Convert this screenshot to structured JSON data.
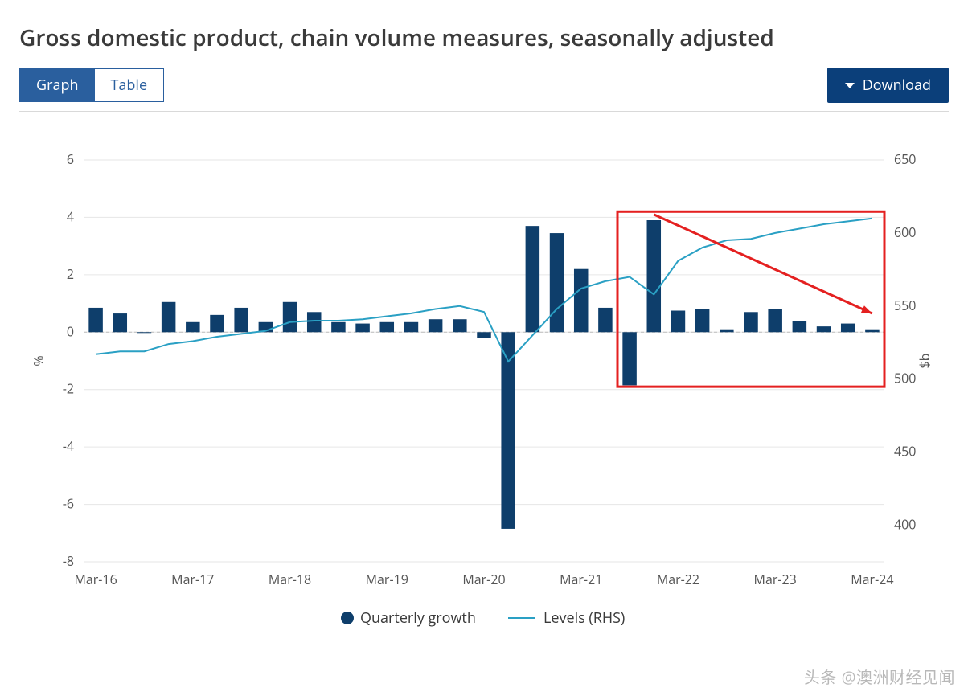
{
  "title": "Gross domestic product, chain volume measures, seasonally adjusted",
  "tabs": {
    "graph": "Graph",
    "table": "Table",
    "active": "graph"
  },
  "download": {
    "label": "Download"
  },
  "watermark": "头条 @澳洲财经见闻",
  "chart": {
    "type": "bar+line",
    "background_color": "#ffffff",
    "grid_color": "#e6e6e6",
    "zero_line_color": "#bdbdbd",
    "bar_color": "#0e3e6b",
    "line_color": "#2aa0c4",
    "text_color": "#555555",
    "highlight_color": "#e42020",
    "arrow_color": "#e42020",
    "left_axis": {
      "label": "%",
      "min": -8,
      "max": 6,
      "step": 2,
      "ticks": [
        -8,
        -6,
        -4,
        -2,
        0,
        2,
        4,
        6
      ]
    },
    "right_axis": {
      "label": "$b",
      "min": 375,
      "max": 650,
      "step": 50,
      "ticks": [
        400,
        450,
        500,
        550,
        600,
        650
      ]
    },
    "x_labels": [
      "Mar-16",
      "Mar-17",
      "Mar-18",
      "Mar-19",
      "Mar-20",
      "Mar-21",
      "Mar-22",
      "Mar-23",
      "Mar-24"
    ],
    "periods": [
      "Mar-16",
      "Jun-16",
      "Sep-16",
      "Dec-16",
      "Mar-17",
      "Jun-17",
      "Sep-17",
      "Dec-17",
      "Mar-18",
      "Jun-18",
      "Sep-18",
      "Dec-18",
      "Mar-19",
      "Jun-19",
      "Sep-19",
      "Dec-19",
      "Mar-20",
      "Jun-20",
      "Sep-20",
      "Dec-20",
      "Mar-21",
      "Jun-21",
      "Sep-21",
      "Dec-21",
      "Mar-22",
      "Jun-22",
      "Sep-22",
      "Dec-22",
      "Mar-23",
      "Jun-23",
      "Sep-23",
      "Dec-23",
      "Mar-24"
    ],
    "bar_values": [
      0.85,
      0.65,
      0.0,
      1.05,
      0.35,
      0.6,
      0.85,
      0.35,
      1.05,
      0.7,
      0.35,
      0.3,
      0.35,
      0.35,
      0.45,
      0.45,
      -0.2,
      -6.85,
      3.7,
      3.45,
      2.2,
      0.85,
      -1.85,
      3.9,
      0.75,
      0.8,
      0.1,
      0.7,
      0.8,
      0.4,
      0.2,
      0.3,
      0.1
    ],
    "line_values_rhs": [
      517,
      519,
      519,
      524,
      526,
      529,
      531,
      533,
      539,
      540,
      540,
      541,
      543,
      545,
      548,
      550,
      546,
      512,
      530,
      548,
      562,
      567,
      570,
      558,
      581,
      590,
      595,
      596,
      600,
      603,
      606,
      608,
      610
    ],
    "bar_width_ratio": 0.58,
    "legend": {
      "bar": "Quarterly growth",
      "line": "Levels (RHS)"
    },
    "highlight_box": {
      "from_period": "Sep-21",
      "to_period": "Mar-24",
      "y_top_pct": 4.2,
      "y_bottom_pct": -1.9
    },
    "arrow": {
      "from_period": "Dec-21",
      "from_pct": 4.1,
      "to_period": "Mar-24",
      "to_pct": 0.65
    },
    "fontsize_axis": 16,
    "fontsize_legend": 18,
    "line_width": 2
  }
}
